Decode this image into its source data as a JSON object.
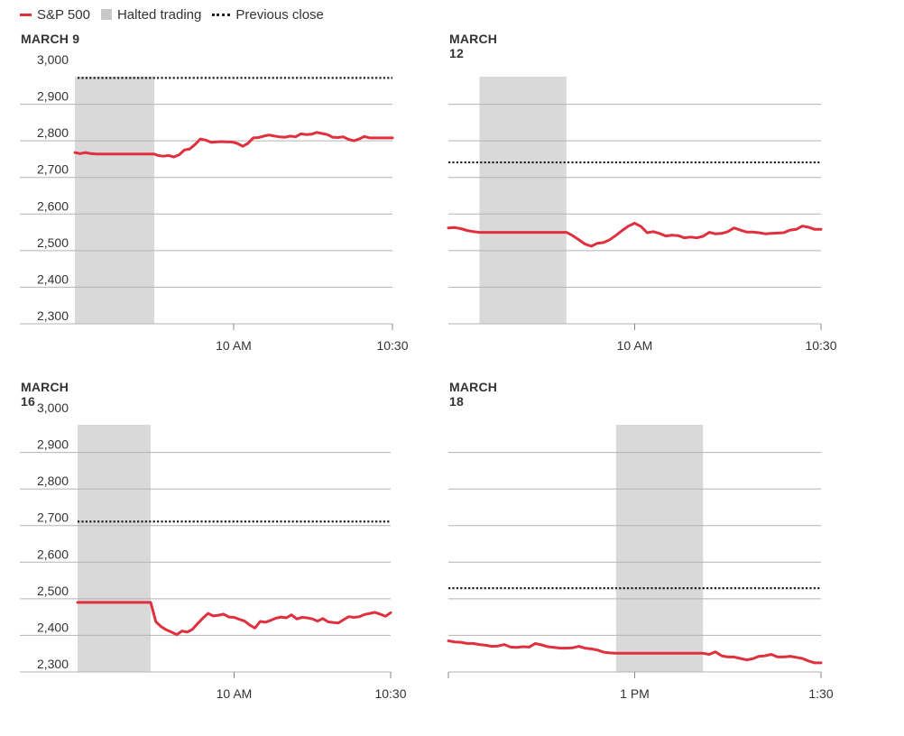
{
  "legend": {
    "sp500_label": "S&P 500",
    "halted_label": "Halted trading",
    "prev_close_label": "Previous close"
  },
  "colors": {
    "sp500": "#e0303e",
    "halted": "#d9d9d9",
    "prev_close": "#222222",
    "grid": "#b3b3b3"
  },
  "chart_data": [
    {
      "type": "line",
      "title": "MARCH 9",
      "x_unit": "minutes since 9:30 AM",
      "xlim": [
        0,
        60
      ],
      "ylim": [
        2300,
        3000
      ],
      "y_ticks": [
        3000,
        2900,
        2800,
        2700,
        2600,
        2500,
        2400,
        2300
      ],
      "y_tick_labels": [
        "3,000",
        "2,900",
        "2,800",
        "2,700",
        "2,600",
        "2,500",
        "2,400",
        "2,300"
      ],
      "x_ticks": [
        30,
        60
      ],
      "x_tick_labels": [
        "10 AM",
        "10:30"
      ],
      "previous_close": 2972,
      "halted": [
        0,
        15
      ],
      "series": [
        {
          "x": [
            0,
            1,
            2,
            3,
            4,
            15,
            15.7,
            16.7,
            17.7,
            18.7,
            19.7,
            20.7,
            21.7,
            22.7,
            23.7,
            24.7,
            25.7,
            26.7,
            27.7,
            28.7,
            29.7,
            30.7,
            31.7,
            32.7,
            33.7,
            34.7,
            35.7,
            36.7,
            37.7,
            38.7,
            39.7,
            40.7,
            41.7,
            42.7,
            43.7,
            44.7,
            45.7,
            46.7,
            47.7,
            48.7,
            49.7,
            50.7,
            51.7,
            52.7,
            53.7,
            54.7,
            55.7,
            56.7,
            57.7,
            58.7,
            59.7,
            60
          ],
          "values": [
            2768,
            2765,
            2768,
            2765,
            2764,
            2764,
            2760,
            2758,
            2760,
            2756,
            2762,
            2775,
            2778,
            2790,
            2805,
            2802,
            2796,
            2797,
            2798,
            2797,
            2797,
            2793,
            2785,
            2793,
            2808,
            2809,
            2813,
            2816,
            2813,
            2811,
            2810,
            2813,
            2811,
            2819,
            2817,
            2818,
            2823,
            2820,
            2817,
            2810,
            2809,
            2811,
            2804,
            2800,
            2805,
            2812,
            2808,
            2808,
            2808,
            2808,
            2808,
            2808
          ]
        }
      ]
    },
    {
      "type": "line",
      "title": "MARCH 12",
      "x_unit": "minutes since 9:30 AM",
      "xlim": [
        0,
        60
      ],
      "ylim": [
        2300,
        3000
      ],
      "y_ticks": [
        3000,
        2900,
        2800,
        2700,
        2600,
        2500,
        2400,
        2300
      ],
      "y_tick_labels": [],
      "x_ticks": [
        30,
        60
      ],
      "x_tick_labels": [
        "10 AM",
        "10:30"
      ],
      "previous_close": 2741,
      "halted": [
        5,
        19
      ],
      "series": [
        {
          "x": [
            0,
            1,
            2,
            3,
            4,
            5,
            19,
            20,
            21,
            22,
            23,
            24,
            25,
            26,
            27,
            28,
            29,
            30,
            31,
            32,
            33,
            34,
            35,
            36,
            37,
            38,
            39,
            40,
            41,
            42,
            43,
            44,
            45,
            46,
            47,
            48,
            49,
            50,
            51,
            52,
            53,
            54,
            55,
            56,
            57,
            58,
            59,
            60
          ],
          "values": [
            2562,
            2563,
            2560,
            2555,
            2552,
            2550,
            2550,
            2541,
            2530,
            2518,
            2512,
            2520,
            2522,
            2530,
            2542,
            2555,
            2567,
            2575,
            2566,
            2549,
            2552,
            2547,
            2540,
            2542,
            2541,
            2535,
            2537,
            2535,
            2539,
            2550,
            2546,
            2547,
            2552,
            2562,
            2556,
            2551,
            2551,
            2549,
            2546,
            2547,
            2548,
            2549,
            2556,
            2558,
            2567,
            2564,
            2558,
            2558
          ]
        }
      ]
    },
    {
      "type": "line",
      "title": "MARCH 16",
      "x_unit": "minutes since 9:30 AM",
      "xlim": [
        0,
        60
      ],
      "ylim": [
        2300,
        3000
      ],
      "y_ticks": [
        3000,
        2900,
        2800,
        2700,
        2600,
        2500,
        2400,
        2300
      ],
      "y_tick_labels": [
        "3,000",
        "2,900",
        "2,800",
        "2,700",
        "2,600",
        "2,500",
        "2,400",
        "2,300"
      ],
      "x_ticks": [
        30,
        60
      ],
      "x_tick_labels": [
        "10 AM",
        "10:30"
      ],
      "previous_close": 2711,
      "halted": [
        0,
        14
      ],
      "series": [
        {
          "x": [
            0,
            14,
            15,
            16,
            17,
            18,
            19,
            20,
            21,
            22,
            23,
            24,
            25,
            26,
            27,
            28,
            29,
            30,
            31,
            32,
            33,
            34,
            35,
            36,
            37,
            38,
            39,
            40,
            41,
            42,
            43,
            44,
            45,
            46,
            47,
            48,
            49,
            50,
            51,
            52,
            53,
            54,
            55,
            56,
            57,
            58,
            59,
            60
          ],
          "values": [
            2490,
            2490,
            2437,
            2424,
            2415,
            2409,
            2402,
            2412,
            2409,
            2416,
            2432,
            2447,
            2460,
            2453,
            2455,
            2458,
            2450,
            2449,
            2444,
            2439,
            2428,
            2420,
            2438,
            2436,
            2441,
            2447,
            2450,
            2448,
            2456,
            2445,
            2449,
            2448,
            2445,
            2439,
            2446,
            2437,
            2435,
            2434,
            2443,
            2451,
            2449,
            2451,
            2457,
            2460,
            2463,
            2458,
            2452,
            2462
          ]
        }
      ]
    },
    {
      "type": "line",
      "title": "MARCH 18",
      "x_unit": "minutes since 12:30 PM",
      "xlim": [
        0,
        60
      ],
      "ylim": [
        2300,
        3000
      ],
      "y_ticks": [
        3000,
        2900,
        2800,
        2700,
        2600,
        2500,
        2400,
        2300
      ],
      "y_tick_labels": [],
      "x_ticks": [
        0,
        30,
        60
      ],
      "x_tick_labels": [
        "",
        "1 PM",
        "1:30"
      ],
      "previous_close": 2529,
      "halted": [
        27,
        41
      ],
      "series": [
        {
          "x": [
            0,
            1,
            2,
            3,
            4,
            5,
            6,
            7,
            8,
            9,
            10,
            11,
            12,
            13,
            14,
            15,
            16,
            17,
            18,
            19,
            20,
            21,
            22,
            23,
            24,
            25,
            26,
            27,
            41,
            42,
            43,
            44,
            45,
            46,
            47,
            48,
            49,
            50,
            51,
            52,
            53,
            54,
            55,
            56,
            57,
            58,
            59,
            60
          ],
          "values": [
            2385,
            2382,
            2381,
            2378,
            2378,
            2375,
            2373,
            2370,
            2371,
            2375,
            2368,
            2367,
            2369,
            2368,
            2378,
            2374,
            2369,
            2367,
            2365,
            2365,
            2366,
            2370,
            2365,
            2363,
            2360,
            2354,
            2352,
            2351,
            2351,
            2348,
            2355,
            2344,
            2341,
            2341,
            2337,
            2333,
            2336,
            2343,
            2344,
            2348,
            2341,
            2341,
            2343,
            2340,
            2337,
            2330,
            2325,
            2325
          ]
        }
      ]
    }
  ]
}
